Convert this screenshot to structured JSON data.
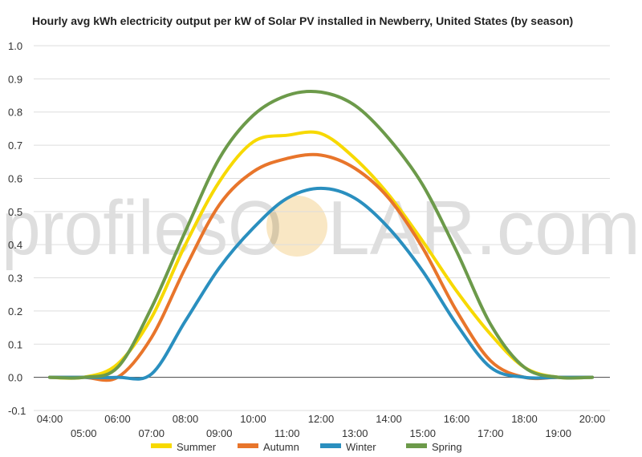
{
  "chart_data": {
    "type": "line",
    "title": "Hourly avg kWh electricity output per kW of Solar PV installed in Newberry, United States (by season)",
    "xlabel": "",
    "ylabel": "",
    "categories": [
      "04:00",
      "05:00",
      "06:00",
      "07:00",
      "08:00",
      "09:00",
      "10:00",
      "11:00",
      "12:00",
      "13:00",
      "14:00",
      "15:00",
      "16:00",
      "17:00",
      "18:00",
      "19:00",
      "20:00"
    ],
    "ylim": [
      -0.1,
      1.0
    ],
    "yticks": [
      "1.0",
      "0.9",
      "0.8",
      "0.7",
      "0.6",
      "0.5",
      "0.4",
      "0.3",
      "0.2",
      "0.1",
      "0.0",
      "-0.1"
    ],
    "grid": true,
    "legend_position": "bottom",
    "series": [
      {
        "name": "Summer",
        "color": "#f7d900",
        "values": [
          0.0,
          0.0,
          0.04,
          0.18,
          0.4,
          0.59,
          0.71,
          0.73,
          0.735,
          0.66,
          0.55,
          0.41,
          0.26,
          0.13,
          0.03,
          0.0,
          0.0
        ]
      },
      {
        "name": "Autumn",
        "color": "#e8752b",
        "values": [
          0.0,
          0.0,
          0.0,
          0.12,
          0.33,
          0.52,
          0.62,
          0.66,
          0.67,
          0.63,
          0.54,
          0.39,
          0.2,
          0.05,
          0.0,
          0.0,
          0.0
        ]
      },
      {
        "name": "Winter",
        "color": "#2a8fbf",
        "values": [
          0.0,
          0.0,
          0.0,
          0.01,
          0.17,
          0.33,
          0.45,
          0.54,
          0.57,
          0.54,
          0.45,
          0.32,
          0.16,
          0.03,
          0.0,
          0.0,
          0.0
        ]
      },
      {
        "name": "Spring",
        "color": "#6c9a4a",
        "values": [
          0.0,
          0.0,
          0.03,
          0.21,
          0.44,
          0.66,
          0.79,
          0.85,
          0.86,
          0.82,
          0.72,
          0.58,
          0.38,
          0.16,
          0.03,
          0.0,
          0.0
        ]
      }
    ]
  },
  "watermark": {
    "left_text": "profilesO",
    "right_text": "LAR.com",
    "sun_color": "#f9e7c4"
  }
}
